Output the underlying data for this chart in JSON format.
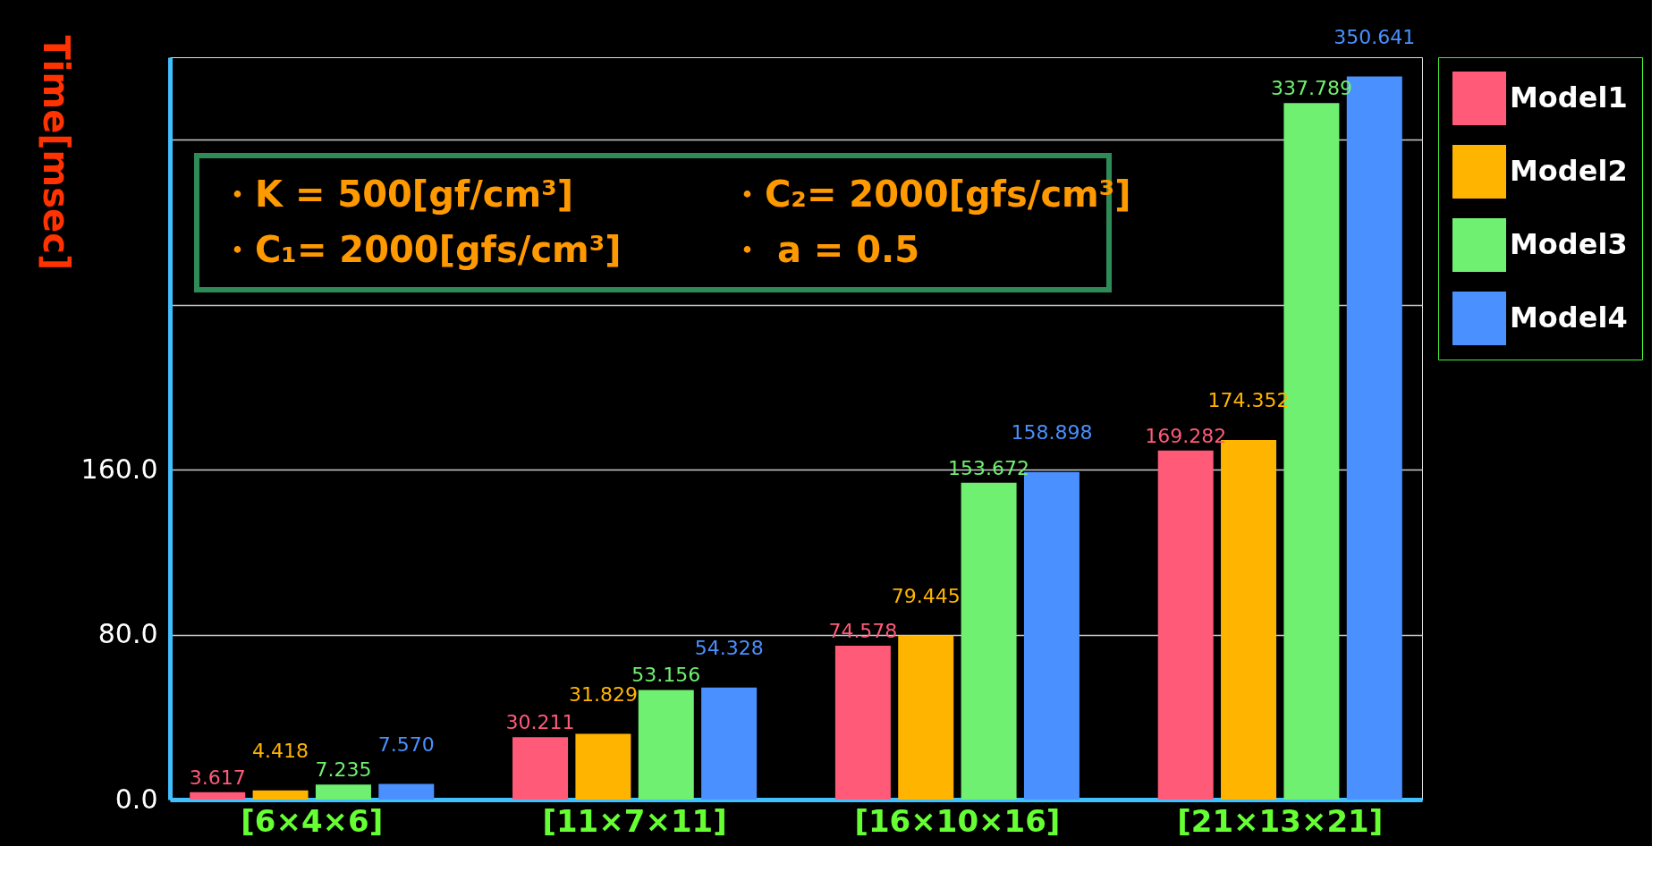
{
  "chart_data": {
    "type": "bar",
    "ylabel": "Time[msec]",
    "categories": [
      "[6×4×6]",
      "[11×7×11]",
      "[16×10×16]",
      "[21×13×21]"
    ],
    "series": [
      {
        "name": "Model1",
        "color": "#ff5a78",
        "values": [
          3.617,
          30.211,
          74.578,
          169.282
        ],
        "value_labels": [
          "3.617",
          "30.211",
          "74.578",
          "169.282"
        ]
      },
      {
        "name": "Model2",
        "color": "#ffb400",
        "values": [
          4.418,
          31.829,
          79.445,
          174.352
        ],
        "value_labels": [
          "4.418",
          "31.829",
          "79.445",
          "174.352"
        ]
      },
      {
        "name": "Model3",
        "color": "#70f070",
        "values": [
          7.235,
          53.156,
          153.672,
          337.789
        ],
        "value_labels": [
          "7.235",
          "53.156",
          "153.672",
          "337.789"
        ]
      },
      {
        "name": "Model4",
        "color": "#4a90ff",
        "values": [
          7.57,
          54.328,
          158.898,
          350.641
        ],
        "value_labels": [
          "7.570",
          "54.328",
          "158.898",
          "350.641"
        ]
      }
    ],
    "ylim": [
      0,
      360
    ],
    "yticks": [
      {
        "value": 0,
        "label": "0.0"
      },
      {
        "value": 80,
        "label": "80.0"
      },
      {
        "value": 160,
        "label": "160.0"
      },
      {
        "value": 240,
        "label": null
      },
      {
        "value": 320,
        "label": null
      }
    ],
    "grid": "y",
    "legend": "top right",
    "annotations": [
      "・K = 500[gf/cm³]",
      "・C₂= 2000[gfs/cm³]",
      "・C₁= 2000[gfs/cm³]",
      "・ a = 0.5"
    ]
  }
}
